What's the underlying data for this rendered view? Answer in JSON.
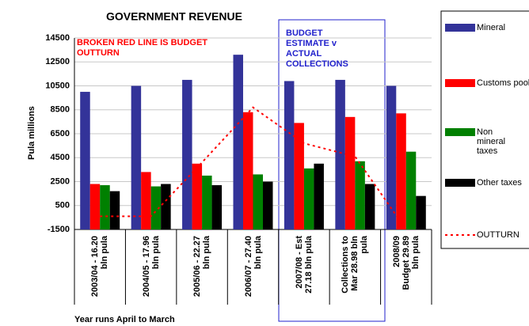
{
  "chart_data": {
    "type": "bar",
    "title": "GOVERNMENT REVENUE",
    "ylabel": "Pula millions",
    "xlabel": "Year runs April to March",
    "annotations": [
      "BROKEN RED LINE IS BUDGET OUTTURN",
      "BUDGET ESTIMATE v ACTUAL COLLECTIONS"
    ],
    "categories": [
      "2003/04 - 16.20 bln pula",
      "2004/05 - 17.96 bln pula",
      "2005/06 - 22.27 bln pula",
      "2006/07 - 27.40 bln pula",
      "2007/08 - Est 27.18 bln pula",
      "Collections to Mar 28.98 bln pula",
      "2008/09 Budget 29.89 bln pula"
    ],
    "series": [
      {
        "name": "Mineral",
        "color": "#333399",
        "values": [
          10000,
          10500,
          11000,
          13100,
          10900,
          11000,
          10500
        ]
      },
      {
        "name": "Customs pool",
        "color": "#ff0000",
        "values": [
          2300,
          3300,
          4000,
          8300,
          7400,
          7900,
          8200
        ]
      },
      {
        "name": "Non mineral taxes",
        "color": "#008000",
        "values": [
          2200,
          2100,
          3000,
          3100,
          3600,
          4200,
          5000
        ]
      },
      {
        "name": "Other taxes",
        "color": "#000000",
        "values": [
          1700,
          2300,
          2200,
          2500,
          4000,
          2300,
          1300
        ]
      },
      {
        "name": "OUTTURN",
        "color": "#ff0000",
        "type": "line",
        "dashed": true,
        "values": [
          -400,
          -400,
          4100,
          8700,
          5700,
          4600,
          -1500
        ]
      }
    ],
    "ylim": [
      -1500,
      14500
    ],
    "yticks": [
      -1500,
      500,
      2500,
      4500,
      6500,
      8500,
      10500,
      12500,
      14500
    ],
    "grid": true,
    "legend": "right"
  }
}
